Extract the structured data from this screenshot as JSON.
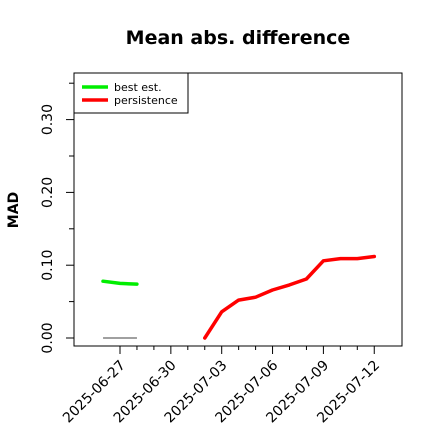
{
  "chart_data": {
    "type": "line",
    "title": "Mean abs. difference",
    "xlabel": "",
    "ylabel": "MAD",
    "x": [
      "2025-06-27",
      "2025-06-28",
      "2025-06-29",
      "2025-06-30",
      "2025-07-01",
      "2025-07-02",
      "2025-07-03",
      "2025-07-04",
      "2025-07-05",
      "2025-07-06",
      "2025-07-07",
      "2025-07-08",
      "2025-07-09",
      "2025-07-10",
      "2025-07-11",
      "2025-07-12"
    ],
    "xticks": [
      "2025-06-27",
      "2025-06-30",
      "2025-07-03",
      "2025-07-06",
      "2025-07-09",
      "2025-07-12"
    ],
    "yticks": [
      "0.00",
      "0.10",
      "0.20",
      "0.30"
    ],
    "ylim": [
      -0.01,
      0.365
    ],
    "grid": false,
    "legend_position": "top-left",
    "series": [
      {
        "name": "best est.",
        "color": "#00ee00",
        "points": [
          {
            "x": "2025-06-26",
            "y": 0.078
          },
          {
            "x": "2025-06-27",
            "y": 0.075
          },
          {
            "x": "2025-06-28",
            "y": 0.074
          }
        ]
      },
      {
        "name": "persistence",
        "color": "#ff0000",
        "points": [
          {
            "x": "2025-07-02",
            "y": 0.0
          },
          {
            "x": "2025-07-03",
            "y": 0.036
          },
          {
            "x": "2025-07-04",
            "y": 0.052
          },
          {
            "x": "2025-07-05",
            "y": 0.056
          },
          {
            "x": "2025-07-06",
            "y": 0.066
          },
          {
            "x": "2025-07-07",
            "y": 0.073
          },
          {
            "x": "2025-07-08",
            "y": 0.081
          },
          {
            "x": "2025-07-09",
            "y": 0.106
          },
          {
            "x": "2025-07-10",
            "y": 0.109
          },
          {
            "x": "2025-07-11",
            "y": 0.109
          },
          {
            "x": "2025-07-12",
            "y": 0.112
          }
        ]
      }
    ],
    "reference_lines": [
      {
        "color": "#808080",
        "y": 0.0,
        "x_from": "2025-06-26",
        "x_to": "2025-06-28"
      }
    ]
  }
}
